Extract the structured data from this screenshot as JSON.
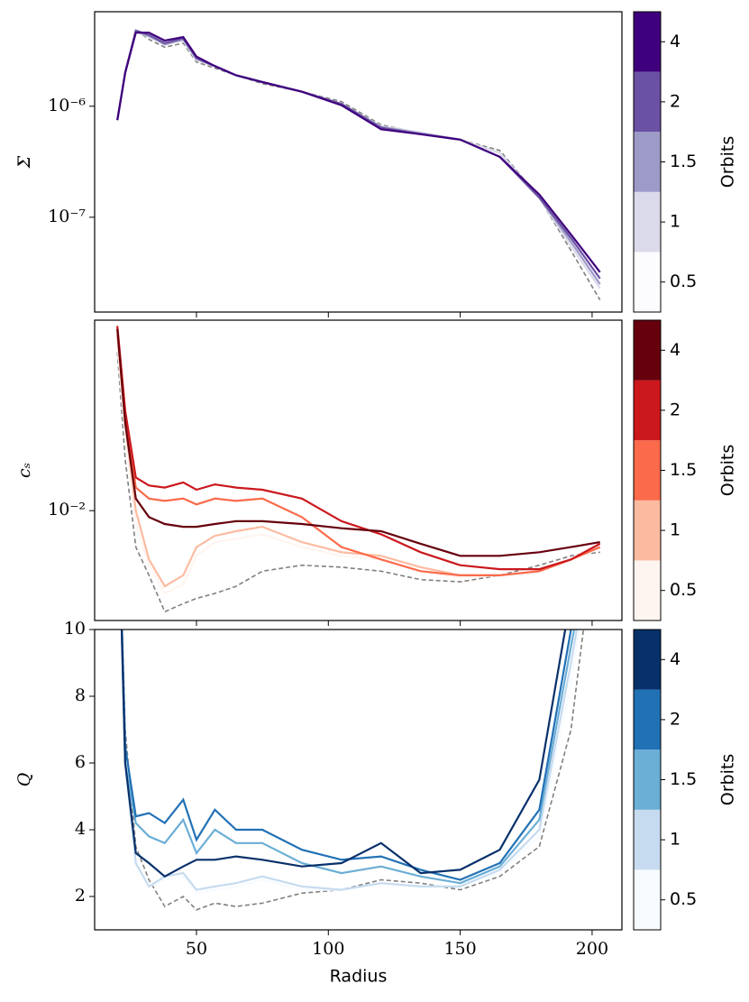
{
  "chart_data": [
    {
      "type": "line",
      "ylabel": "Σ",
      "log_y": true,
      "colorbar_label": "Orbits",
      "xtick_labels": false,
      "x": [
        20,
        23,
        27,
        32,
        38,
        45,
        50,
        57,
        65,
        75,
        90,
        105,
        120,
        135,
        150,
        165,
        180,
        192,
        203
      ],
      "xlim": [
        11.4,
        211.3
      ],
      "xticks": [
        50,
        100,
        150,
        200
      ],
      "ylim": [
        1.4e-08,
        7.1e-06
      ],
      "yticks": [
        {
          "value": 1e-07,
          "label": "10⁻⁷"
        },
        {
          "value": 1e-06,
          "label": "10⁻⁶"
        }
      ],
      "series": [
        {
          "color": "#808080",
          "linestyle": "dashed",
          "values": [
            7.5e-07,
            2.1e-06,
            4.9e-06,
            4e-06,
            3.4e-06,
            3.7e-06,
            2.5e-06,
            2.2e-06,
            1.9e-06,
            1.6e-06,
            1.35e-06,
            1.1e-06,
            6.8e-07,
            5.7e-07,
            5e-07,
            4e-07,
            1.5e-07,
            5e-08,
            1.8e-08
          ]
        },
        {
          "name": "0.5",
          "color": "#fcfbfd",
          "values": [
            7.5e-07,
            2e-06,
            4.8e-06,
            4.2e-06,
            3.6e-06,
            3.9e-06,
            2.6e-06,
            2.3e-06,
            1.9e-06,
            1.65e-06,
            1.35e-06,
            1.05e-06,
            6.5e-07,
            5.7e-07,
            5e-07,
            3.6e-07,
            1.5e-07,
            5.5e-08,
            2.2e-08
          ]
        },
        {
          "name": "1",
          "color": "#dadaeb",
          "values": [
            7.5e-07,
            2e-06,
            4.8e-06,
            4.2e-06,
            3.7e-06,
            3.9e-06,
            2.6e-06,
            2.3e-06,
            1.9e-06,
            1.65e-06,
            1.35e-06,
            1.05e-06,
            6.6e-07,
            5.8e-07,
            5e-07,
            3.8e-07,
            1.5e-07,
            5.5e-08,
            2.3e-08
          ]
        },
        {
          "name": "1.5",
          "color": "#9e9ac8",
          "values": [
            7.5e-07,
            2e-06,
            4.7e-06,
            4.3e-06,
            3.6e-06,
            4e-06,
            2.7e-06,
            2.3e-06,
            1.9e-06,
            1.65e-06,
            1.35e-06,
            1.05e-06,
            6.5e-07,
            5.7e-07,
            5e-07,
            3.5e-07,
            1.5e-07,
            6e-08,
            2.5e-08
          ]
        },
        {
          "name": "2",
          "color": "#6a51a3",
          "values": [
            7.5e-07,
            2e-06,
            4.8e-06,
            4.4e-06,
            3.7e-06,
            4.1e-06,
            2.7e-06,
            2.3e-06,
            1.9e-06,
            1.65e-06,
            1.35e-06,
            1.05e-06,
            6.4e-07,
            5.6e-07,
            5e-07,
            3.5e-07,
            1.5e-07,
            6.5e-08,
            2.8e-08
          ]
        },
        {
          "name": "4",
          "color": "#3f007d",
          "values": [
            7.5e-07,
            2e-06,
            4.6e-06,
            4.6e-06,
            3.9e-06,
            4.2e-06,
            2.8e-06,
            2.3e-06,
            1.9e-06,
            1.65e-06,
            1.35e-06,
            1.02e-06,
            6.2e-07,
            5.6e-07,
            5e-07,
            3.5e-07,
            1.6e-07,
            7e-08,
            3.2e-08
          ]
        }
      ]
    },
    {
      "type": "line",
      "ylabel": "cₛ",
      "log_y": true,
      "colorbar_label": "Orbits",
      "xtick_labels": false,
      "x": [
        20,
        23,
        27,
        32,
        38,
        45,
        50,
        57,
        65,
        75,
        90,
        105,
        120,
        135,
        150,
        165,
        180,
        192,
        203
      ],
      "xlim": [
        11.4,
        211.3
      ],
      "xticks": [
        50,
        100,
        150,
        200
      ],
      "ylim": [
        0.0042,
        0.045
      ],
      "yticks": [
        {
          "value": 0.01,
          "label": "10⁻²"
        }
      ],
      "series": [
        {
          "color": "#808080",
          "linestyle": "dashed",
          "values": [
            0.035,
            0.015,
            0.0075,
            0.006,
            0.0045,
            0.0048,
            0.005,
            0.0052,
            0.0055,
            0.0062,
            0.0065,
            0.0064,
            0.0062,
            0.0058,
            0.0057,
            0.006,
            0.0065,
            0.007,
            0.0072
          ]
        },
        {
          "name": "0.5",
          "color": "#fff5f0",
          "values": [
            0.038,
            0.018,
            0.009,
            0.0065,
            0.0052,
            0.0056,
            0.007,
            0.0078,
            0.008,
            0.0083,
            0.0075,
            0.007,
            0.0068,
            0.0062,
            0.0059,
            0.006,
            0.0062,
            0.0068,
            0.0074
          ]
        },
        {
          "name": "1",
          "color": "#fcbba1",
          "values": [
            0.04,
            0.02,
            0.01,
            0.0068,
            0.0055,
            0.006,
            0.0075,
            0.0082,
            0.0085,
            0.0088,
            0.0078,
            0.0072,
            0.007,
            0.0064,
            0.006,
            0.006,
            0.0062,
            0.0068,
            0.0075
          ]
        },
        {
          "name": "1.5",
          "color": "#fb6a4a",
          "values": [
            0.042,
            0.022,
            0.012,
            0.011,
            0.0108,
            0.011,
            0.0105,
            0.011,
            0.0108,
            0.011,
            0.0095,
            0.0075,
            0.0068,
            0.0062,
            0.006,
            0.006,
            0.0062,
            0.0068,
            0.0075
          ]
        },
        {
          "name": "2",
          "color": "#cb181d",
          "values": [
            0.043,
            0.022,
            0.013,
            0.0122,
            0.012,
            0.0125,
            0.0118,
            0.0123,
            0.012,
            0.0118,
            0.011,
            0.0092,
            0.0083,
            0.0072,
            0.0065,
            0.0063,
            0.0063,
            0.0068,
            0.0077
          ]
        },
        {
          "name": "4",
          "color": "#67000d",
          "values": [
            0.042,
            0.02,
            0.011,
            0.0095,
            0.009,
            0.0088,
            0.0088,
            0.009,
            0.0092,
            0.0092,
            0.009,
            0.0087,
            0.0085,
            0.0077,
            0.007,
            0.007,
            0.0072,
            0.0075,
            0.0078
          ]
        }
      ]
    },
    {
      "type": "line",
      "ylabel": "Q",
      "log_y": false,
      "colorbar_label": "Orbits",
      "xlabel": "Radius",
      "xtick_labels": true,
      "x": [
        20,
        23,
        27,
        32,
        38,
        45,
        50,
        57,
        65,
        75,
        90,
        105,
        120,
        135,
        150,
        165,
        180,
        192,
        203
      ],
      "xlim": [
        11.4,
        211.3
      ],
      "xticks": [
        50,
        100,
        150,
        200
      ],
      "ylim": [
        1,
        10
      ],
      "yticks": [
        2,
        4,
        6,
        8,
        10
      ],
      "series": [
        {
          "color": "#808080",
          "linestyle": "dashed",
          "values": [
            15,
            7,
            3.5,
            2.5,
            1.7,
            2.0,
            1.6,
            1.8,
            1.7,
            1.8,
            2.1,
            2.2,
            2.5,
            2.4,
            2.2,
            2.6,
            3.5,
            7,
            14
          ]
        },
        {
          "name": "0.5",
          "color": "#f7fbff",
          "values": [
            15,
            6,
            3.0,
            2.3,
            2.5,
            2.6,
            2.1,
            2.2,
            2.3,
            2.5,
            2.2,
            2.2,
            2.4,
            2.3,
            2.3,
            2.7,
            3.8,
            8.5,
            14
          ]
        },
        {
          "name": "1",
          "color": "#c6dbef",
          "values": [
            15,
            6,
            3.0,
            2.3,
            2.6,
            2.7,
            2.2,
            2.3,
            2.4,
            2.6,
            2.3,
            2.2,
            2.4,
            2.3,
            2.3,
            2.8,
            4.0,
            9,
            14
          ]
        },
        {
          "name": "1.5",
          "color": "#6baed6",
          "values": [
            15,
            6,
            4.2,
            3.8,
            3.6,
            4.3,
            3.3,
            4.0,
            3.6,
            3.6,
            3.0,
            2.7,
            2.9,
            2.6,
            2.4,
            2.9,
            4.3,
            9.5,
            14
          ]
        },
        {
          "name": "2",
          "color": "#2171b5",
          "values": [
            15,
            6.5,
            4.4,
            4.5,
            4.2,
            4.9,
            3.7,
            4.6,
            4.0,
            4.0,
            3.4,
            3.1,
            3.2,
            2.8,
            2.5,
            3.0,
            4.6,
            10,
            14
          ]
        },
        {
          "name": "4",
          "color": "#08306b",
          "values": [
            15,
            6,
            3.3,
            3.0,
            2.6,
            2.9,
            3.1,
            3.1,
            3.2,
            3.1,
            2.9,
            3.0,
            3.6,
            2.7,
            2.8,
            3.4,
            5.5,
            11,
            14
          ]
        }
      ]
    }
  ]
}
